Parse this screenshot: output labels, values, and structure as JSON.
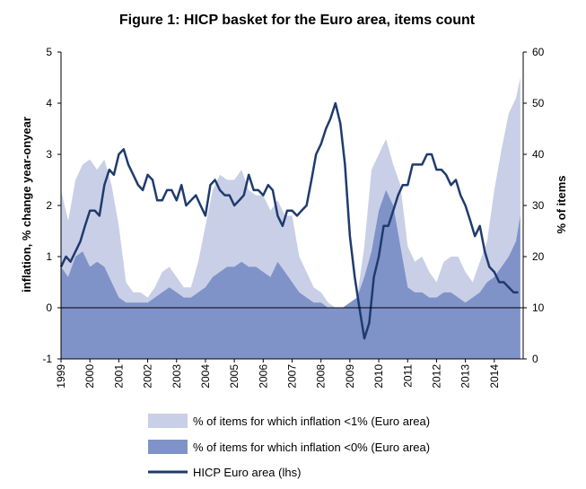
{
  "chart_data": {
    "type": "area",
    "title": "Figure 1: HICP basket for the Euro area, items count",
    "ylabel_left": "inflation, % change year-onyear",
    "ylabel_right": "% of items",
    "ylim_left": [
      -1,
      5
    ],
    "ylim_right": [
      0,
      60
    ],
    "yticks_left": [
      "5",
      "4",
      "3",
      "2",
      "1",
      "0",
      "-1"
    ],
    "yticks_right": [
      "60",
      "50",
      "40",
      "30",
      "20",
      "10",
      "0"
    ],
    "xticks": [
      "1999",
      "2000",
      "2001",
      "2002",
      "2003",
      "2004",
      "2005",
      "2006",
      "2007",
      "2008",
      "2009",
      "2010",
      "2011",
      "2012",
      "2013",
      "2014"
    ],
    "legend_position": "bottom",
    "series": [
      {
        "name": "% of items for which inflation <1% (Euro area)",
        "axis": "right",
        "color": "#c9cfe6",
        "x": [
          1999.0,
          1999.25,
          1999.5,
          1999.75,
          2000.0,
          2000.25,
          2000.5,
          2000.75,
          2001.0,
          2001.25,
          2001.5,
          2001.75,
          2002.0,
          2002.25,
          2002.5,
          2002.75,
          2003.0,
          2003.25,
          2003.5,
          2003.75,
          2004.0,
          2004.25,
          2004.5,
          2004.75,
          2005.0,
          2005.25,
          2005.5,
          2005.75,
          2006.0,
          2006.25,
          2006.5,
          2006.75,
          2007.0,
          2007.25,
          2007.5,
          2007.75,
          2008.0,
          2008.25,
          2008.5,
          2008.75,
          2009.0,
          2009.25,
          2009.5,
          2009.75,
          2010.0,
          2010.25,
          2010.5,
          2010.75,
          2011.0,
          2011.25,
          2011.5,
          2011.75,
          2012.0,
          2012.25,
          2012.5,
          2012.75,
          2013.0,
          2013.25,
          2013.5,
          2013.75,
          2014.0,
          2014.25,
          2014.5,
          2014.75,
          2014.9
        ],
        "values": [
          33,
          27,
          35,
          38,
          39,
          37,
          39,
          34,
          26,
          15,
          13,
          13,
          12,
          14,
          17,
          18,
          16,
          14,
          14,
          19,
          26,
          33,
          36,
          35,
          35,
          37,
          33,
          32,
          32,
          29,
          31,
          28,
          28,
          20,
          17,
          14,
          13,
          11,
          10,
          10,
          10,
          12,
          22,
          37,
          40,
          43,
          38,
          34,
          22,
          19,
          20,
          17,
          15,
          19,
          20,
          20,
          17,
          15,
          19,
          23,
          33,
          41,
          48,
          51,
          55
        ]
      },
      {
        "name": "% of items for which inflation <0% (Euro area)",
        "axis": "right",
        "color": "#7f93c9",
        "x": [
          1999.0,
          1999.25,
          1999.5,
          1999.75,
          2000.0,
          2000.25,
          2000.5,
          2000.75,
          2001.0,
          2001.25,
          2001.5,
          2001.75,
          2002.0,
          2002.25,
          2002.5,
          2002.75,
          2003.0,
          2003.25,
          2003.5,
          2003.75,
          2004.0,
          2004.25,
          2004.5,
          2004.75,
          2005.0,
          2005.25,
          2005.5,
          2005.75,
          2006.0,
          2006.25,
          2006.5,
          2006.75,
          2007.0,
          2007.25,
          2007.5,
          2007.75,
          2008.0,
          2008.25,
          2008.5,
          2008.75,
          2009.0,
          2009.25,
          2009.5,
          2009.75,
          2010.0,
          2010.25,
          2010.5,
          2010.75,
          2011.0,
          2011.25,
          2011.5,
          2011.75,
          2012.0,
          2012.25,
          2012.5,
          2012.75,
          2013.0,
          2013.25,
          2013.5,
          2013.75,
          2014.0,
          2014.25,
          2014.5,
          2014.75,
          2014.9
        ],
        "values": [
          18,
          16,
          20,
          21,
          18,
          19,
          18,
          15,
          12,
          11,
          11,
          11,
          11,
          12,
          13,
          14,
          13,
          12,
          12,
          13,
          14,
          16,
          17,
          18,
          18,
          19,
          18,
          18,
          17,
          16,
          19,
          17,
          15,
          13,
          12,
          11,
          11,
          10,
          10,
          10,
          11,
          12,
          16,
          21,
          29,
          33,
          30,
          22,
          14,
          13,
          13,
          12,
          12,
          13,
          13,
          12,
          11,
          12,
          13,
          15,
          16,
          18,
          20,
          23,
          28
        ]
      },
      {
        "name": "HICP Euro area (lhs)",
        "axis": "left",
        "color": "#1f3b6e",
        "x": [
          1999.0,
          1999.17,
          1999.33,
          1999.5,
          1999.67,
          1999.83,
          2000.0,
          2000.17,
          2000.33,
          2000.5,
          2000.67,
          2000.83,
          2001.0,
          2001.17,
          2001.33,
          2001.5,
          2001.67,
          2001.83,
          2002.0,
          2002.17,
          2002.33,
          2002.5,
          2002.67,
          2002.83,
          2003.0,
          2003.17,
          2003.33,
          2003.5,
          2003.67,
          2003.83,
          2004.0,
          2004.17,
          2004.33,
          2004.5,
          2004.67,
          2004.83,
          2005.0,
          2005.17,
          2005.33,
          2005.5,
          2005.67,
          2005.83,
          2006.0,
          2006.17,
          2006.33,
          2006.5,
          2006.67,
          2006.83,
          2007.0,
          2007.17,
          2007.33,
          2007.5,
          2007.67,
          2007.83,
          2008.0,
          2008.17,
          2008.33,
          2008.5,
          2008.67,
          2008.83,
          2009.0,
          2009.17,
          2009.33,
          2009.5,
          2009.67,
          2009.83,
          2010.0,
          2010.17,
          2010.33,
          2010.5,
          2010.67,
          2010.83,
          2011.0,
          2011.17,
          2011.33,
          2011.5,
          2011.67,
          2011.83,
          2012.0,
          2012.17,
          2012.33,
          2012.5,
          2012.67,
          2012.83,
          2013.0,
          2013.17,
          2013.33,
          2013.5,
          2013.67,
          2013.83,
          2014.0,
          2014.17,
          2014.33,
          2014.5,
          2014.67,
          2014.83
        ],
        "values": [
          0.8,
          1.0,
          0.9,
          1.1,
          1.3,
          1.6,
          1.9,
          1.9,
          1.8,
          2.4,
          2.7,
          2.6,
          3.0,
          3.1,
          2.8,
          2.6,
          2.4,
          2.3,
          2.6,
          2.5,
          2.1,
          2.1,
          2.3,
          2.3,
          2.1,
          2.4,
          2.0,
          2.1,
          2.2,
          2.0,
          1.8,
          2.4,
          2.5,
          2.3,
          2.2,
          2.2,
          2.0,
          2.1,
          2.2,
          2.6,
          2.3,
          2.3,
          2.2,
          2.4,
          2.3,
          1.8,
          1.6,
          1.9,
          1.9,
          1.8,
          1.9,
          2.0,
          2.5,
          3.0,
          3.2,
          3.5,
          3.7,
          4.0,
          3.6,
          2.8,
          1.4,
          0.6,
          0.0,
          -0.6,
          -0.3,
          0.6,
          1.0,
          1.6,
          1.6,
          1.9,
          2.2,
          2.4,
          2.4,
          2.8,
          2.8,
          2.8,
          3.0,
          3.0,
          2.7,
          2.7,
          2.6,
          2.4,
          2.5,
          2.2,
          2.0,
          1.7,
          1.4,
          1.6,
          1.1,
          0.8,
          0.7,
          0.5,
          0.5,
          0.4,
          0.3,
          0.3
        ]
      }
    ]
  }
}
